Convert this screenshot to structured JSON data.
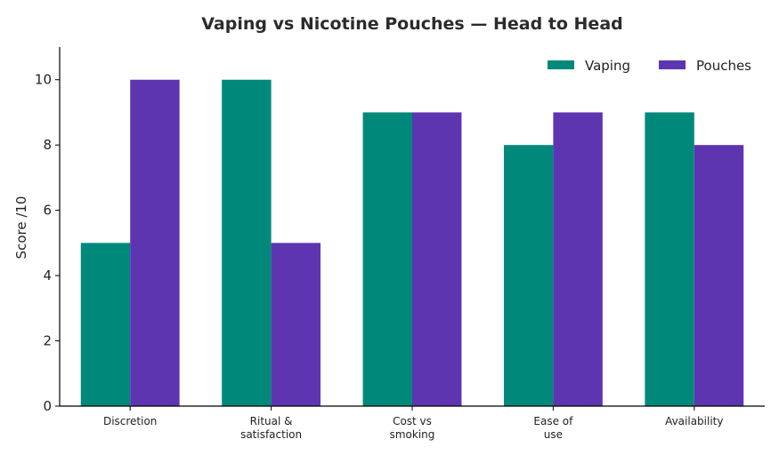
{
  "chart_data": {
    "type": "bar",
    "title": "Vaping vs Nicotine Pouches — Head to Head",
    "xlabel": "",
    "ylabel": "Score /10",
    "ylim": [
      0,
      11
    ],
    "yticks": [
      0,
      2,
      4,
      6,
      8,
      10
    ],
    "categories": [
      [
        "Discretion"
      ],
      [
        "Ritual &",
        "satisfaction"
      ],
      [
        "Cost vs",
        "smoking"
      ],
      [
        "Ease of",
        "use"
      ],
      [
        "Availability"
      ]
    ],
    "series": [
      {
        "name": "Vaping",
        "values": [
          5,
          10,
          9,
          8,
          9
        ],
        "color": "#00897b"
      },
      {
        "name": "Pouches",
        "values": [
          10,
          5,
          9,
          9,
          8
        ],
        "color": "#5e35b1"
      }
    ],
    "legend_position": "top-right",
    "grid": false
  }
}
